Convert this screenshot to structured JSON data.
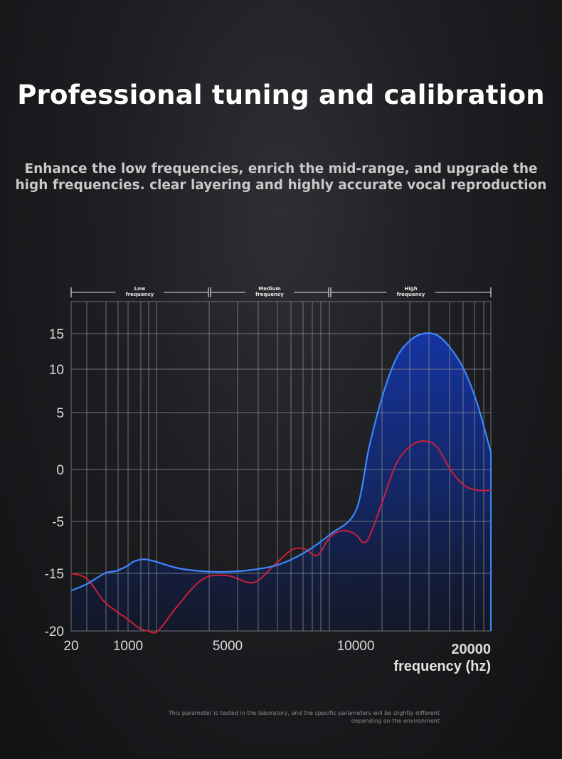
{
  "title": "Professional tuning and calibration",
  "subtitle": {
    "line1": "Enhance the low frequencies, enrich the mid-range, and upgrade the",
    "line2": "high frequencies. clear layering and highly accurate vocal reproduction"
  },
  "note": {
    "line1": "This parameter is tested in the laboratory, and the specific parameters will be slightly different",
    "line2": "depending on the environment"
  },
  "colors": {
    "blue_curve": "#3f86ff",
    "red_curve": "#cc1f3a",
    "fill_top": "#1535a8",
    "grid": "#8d8d8d"
  },
  "chart_data": {
    "type": "line",
    "bands": [
      {
        "line1": "Low",
        "line2": "frequency"
      },
      {
        "line1": "Medium",
        "line2": "frequency"
      },
      {
        "line1": "High",
        "line2": "frequency"
      }
    ],
    "x_ticks": [
      "20",
      "1000",
      "5000",
      "10000",
      "20000"
    ],
    "y_ticks": [
      "15",
      "10",
      "5",
      "0",
      "-5",
      "-15",
      "-20"
    ],
    "xlabel": "frequency (hz)",
    "ylabel": "",
    "ylim": [
      -20,
      15
    ],
    "grid": true,
    "series": [
      {
        "color": "blue",
        "x": [
          20,
          300,
          600,
          800,
          1000,
          1200,
          1600,
          2000,
          3000,
          4000,
          5000,
          6000,
          7000,
          8000,
          9000,
          10000,
          11000,
          12000,
          13000,
          14000,
          15000,
          16000,
          17000,
          18000,
          19000,
          20000
        ],
        "values": [
          -16.5,
          -15.9,
          -15.0,
          -14.5,
          -13.5,
          -12.8,
          -12.3,
          -12.6,
          -14.0,
          -14.6,
          -14.7,
          -14.3,
          -13.3,
          -11.0,
          -7.5,
          -4.0,
          2.0,
          7.0,
          11.5,
          14.0,
          15.0,
          14.8,
          13.0,
          10.0,
          6.0,
          1.5
        ]
      },
      {
        "color": "red",
        "x": [
          20,
          300,
          600,
          1000,
          1400,
          1800,
          2200,
          3000,
          4000,
          5000,
          6000,
          6800,
          7500,
          8000,
          8500,
          9000,
          9500,
          10000,
          10500,
          11000,
          12000,
          13000,
          14000,
          15000,
          16000,
          17000,
          18000,
          19000,
          20000
        ],
        "values": [
          -15.0,
          -15.5,
          -17.5,
          -19.0,
          -19.7,
          -20.0,
          -20.0,
          -17.8,
          -15.5,
          -15.2,
          -15.8,
          -13.5,
          -10.5,
          -10.3,
          -11.5,
          -8.0,
          -6.8,
          -7.5,
          -9.0,
          -8.0,
          -3.0,
          0.5,
          2.0,
          2.5,
          2.0,
          0.0,
          -1.5,
          -2.0,
          -2.0
        ]
      }
    ]
  }
}
